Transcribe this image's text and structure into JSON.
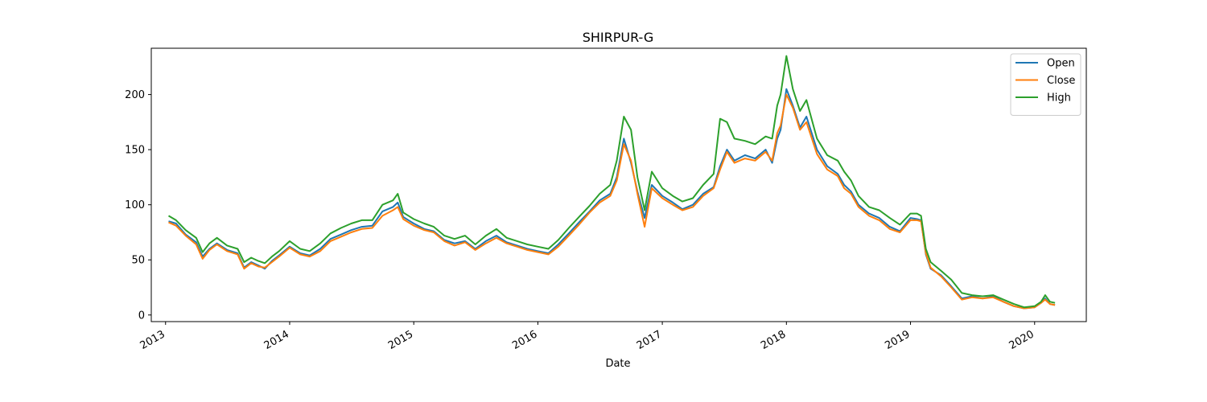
{
  "chart_data": {
    "type": "line",
    "title": "SHIRPUR-G",
    "xlabel": "Date",
    "ylabel": "",
    "x_range": [
      "2012-11-20",
      "2020-06-01"
    ],
    "ylim": [
      -6,
      242
    ],
    "x_ticks": [
      {
        "date": "2013-01-01",
        "label": "2013"
      },
      {
        "date": "2014-01-01",
        "label": "2014"
      },
      {
        "date": "2015-01-01",
        "label": "2015"
      },
      {
        "date": "2016-01-01",
        "label": "2016"
      },
      {
        "date": "2017-01-01",
        "label": "2017"
      },
      {
        "date": "2018-01-01",
        "label": "2018"
      },
      {
        "date": "2019-01-01",
        "label": "2019"
      },
      {
        "date": "2020-01-01",
        "label": "2020"
      }
    ],
    "y_ticks": [
      0,
      50,
      100,
      150,
      200
    ],
    "legend": {
      "location": "upper right",
      "entries": [
        "Open",
        "Close",
        "High"
      ]
    },
    "grid": false,
    "x": [
      "2013-01-10",
      "2013-02-01",
      "2013-03-01",
      "2013-04-01",
      "2013-04-20",
      "2013-05-10",
      "2013-06-01",
      "2013-07-01",
      "2013-08-01",
      "2013-08-20",
      "2013-09-10",
      "2013-10-01",
      "2013-10-20",
      "2013-11-10",
      "2013-12-01",
      "2014-01-01",
      "2014-02-01",
      "2014-03-01",
      "2014-04-01",
      "2014-05-01",
      "2014-06-01",
      "2014-07-01",
      "2014-08-01",
      "2014-09-01",
      "2014-10-01",
      "2014-11-01",
      "2014-11-15",
      "2014-12-01",
      "2015-01-01",
      "2015-02-01",
      "2015-03-01",
      "2015-04-01",
      "2015-05-01",
      "2015-06-01",
      "2015-07-01",
      "2015-08-01",
      "2015-09-01",
      "2015-10-01",
      "2015-11-01",
      "2015-12-01",
      "2016-01-01",
      "2016-02-01",
      "2016-03-01",
      "2016-04-01",
      "2016-05-01",
      "2016-06-01",
      "2016-07-01",
      "2016-08-01",
      "2016-08-20",
      "2016-09-10",
      "2016-10-01",
      "2016-10-20",
      "2016-11-10",
      "2016-12-01",
      "2017-01-01",
      "2017-02-01",
      "2017-03-01",
      "2017-04-01",
      "2017-05-01",
      "2017-06-01",
      "2017-06-20",
      "2017-07-10",
      "2017-08-01",
      "2017-09-01",
      "2017-10-01",
      "2017-11-01",
      "2017-11-20",
      "2017-12-05",
      "2017-12-15",
      "2018-01-01",
      "2018-01-20",
      "2018-02-10",
      "2018-03-01",
      "2018-04-01",
      "2018-05-01",
      "2018-06-01",
      "2018-06-20",
      "2018-07-10",
      "2018-08-01",
      "2018-09-01",
      "2018-10-01",
      "2018-11-01",
      "2018-12-01",
      "2019-01-01",
      "2019-01-20",
      "2019-02-01",
      "2019-02-15",
      "2019-03-01",
      "2019-04-01",
      "2019-05-01",
      "2019-06-01",
      "2019-07-01",
      "2019-08-01",
      "2019-09-01",
      "2019-10-01",
      "2019-11-01",
      "2019-12-01",
      "2020-01-01",
      "2020-01-20",
      "2020-02-01",
      "2020-02-15",
      "2020-03-01"
    ],
    "series": [
      {
        "name": "Open",
        "color": "#1f77b4",
        "values": [
          85,
          83,
          73,
          66,
          53,
          60,
          65,
          59,
          56,
          43,
          48,
          45,
          42,
          49,
          54,
          62,
          56,
          54,
          60,
          69,
          73,
          77,
          80,
          81,
          94,
          98,
          102,
          89,
          83,
          78,
          76,
          68,
          65,
          67,
          60,
          67,
          72,
          66,
          63,
          60,
          58,
          56,
          64,
          74,
          84,
          94,
          104,
          110,
          125,
          160,
          138,
          112,
          88,
          118,
          108,
          102,
          96,
          100,
          110,
          116,
          135,
          150,
          140,
          145,
          142,
          150,
          138,
          160,
          168,
          205,
          190,
          170,
          180,
          150,
          135,
          128,
          118,
          112,
          100,
          92,
          88,
          80,
          76,
          88,
          87,
          86,
          55,
          42,
          36,
          26,
          15,
          17,
          15,
          17,
          12,
          8,
          6,
          7,
          11,
          15,
          10,
          9
        ]
      },
      {
        "name": "Close",
        "color": "#ff7f0e",
        "values": [
          84,
          81,
          72,
          64,
          51,
          59,
          64,
          58,
          55,
          42,
          47,
          44,
          43,
          48,
          53,
          61,
          55,
          53,
          58,
          67,
          71,
          75,
          78,
          79,
          90,
          95,
          98,
          87,
          81,
          77,
          75,
          67,
          63,
          66,
          59,
          65,
          70,
          65,
          62,
          59,
          57,
          55,
          62,
          72,
          82,
          93,
          102,
          108,
          122,
          155,
          140,
          110,
          80,
          115,
          106,
          100,
          95,
          98,
          108,
          115,
          132,
          148,
          138,
          142,
          140,
          148,
          140,
          165,
          172,
          200,
          188,
          168,
          175,
          146,
          132,
          126,
          115,
          110,
          98,
          90,
          86,
          78,
          75,
          86,
          86,
          85,
          56,
          43,
          35,
          25,
          14,
          16,
          15,
          16,
          12,
          8,
          6,
          7,
          11,
          14,
          10,
          9
        ]
      },
      {
        "name": "High",
        "color": "#2ca02c",
        "values": [
          90,
          86,
          77,
          70,
          57,
          65,
          70,
          63,
          60,
          48,
          52,
          49,
          47,
          53,
          58,
          67,
          60,
          58,
          65,
          74,
          79,
          83,
          86,
          86,
          100,
          104,
          110,
          93,
          87,
          83,
          80,
          72,
          69,
          72,
          64,
          72,
          78,
          70,
          67,
          64,
          62,
          60,
          68,
          79,
          89,
          99,
          110,
          118,
          140,
          180,
          168,
          125,
          95,
          130,
          115,
          108,
          103,
          106,
          118,
          128,
          178,
          175,
          160,
          158,
          155,
          162,
          160,
          190,
          200,
          235,
          205,
          185,
          195,
          160,
          145,
          140,
          130,
          122,
          108,
          98,
          95,
          88,
          82,
          92,
          92,
          90,
          60,
          48,
          40,
          32,
          20,
          18,
          17,
          18,
          14,
          10,
          7,
          8,
          12,
          18,
          12,
          11
        ]
      }
    ]
  }
}
